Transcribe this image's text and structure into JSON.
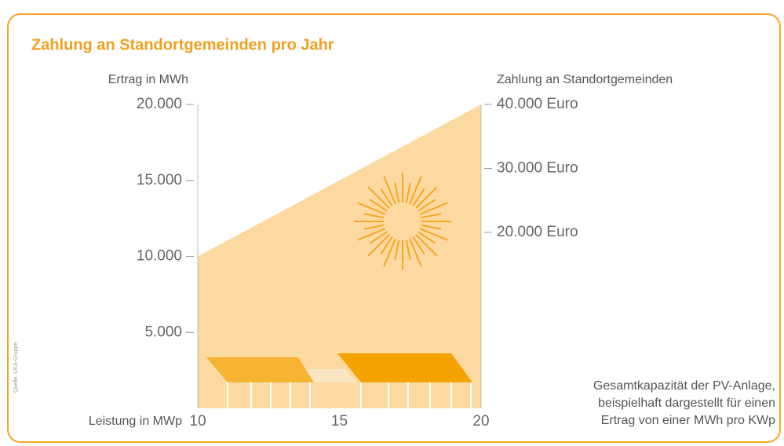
{
  "chart_data": {
    "type": "area",
    "title": "Zahlung an Standortgemeinden pro Jahr",
    "y_label": "Ertrag in MWh",
    "y2_label": "Zahlung an Standortgemeinden",
    "x_label": "Leistung in MWp",
    "note": [
      "Gesamtkapazität der PV-Anlage,",
      "beispielhaft dargestellt für einen",
      "Ertrag von einer MWh pro KWp"
    ],
    "source": "Quelle: UKA-Gruppe",
    "x": [
      10,
      20
    ],
    "values": [
      10000,
      20000
    ],
    "color": "#fdd9a2",
    "xlim": [
      10,
      20
    ],
    "xticks": [
      10,
      15,
      20
    ],
    "ylim": [
      0,
      20000
    ],
    "yticks": [
      {
        "value": 5000,
        "label": "5.000"
      },
      {
        "value": 10000,
        "label": "10.000"
      },
      {
        "value": 15000,
        "label": "15.000"
      },
      {
        "value": 20000,
        "label": "20.000"
      }
    ],
    "y2lim": [
      -7500,
      40000
    ],
    "y2ticks": [
      {
        "value": 20000,
        "label": "20.000 Euro"
      },
      {
        "value": 30000,
        "label": "30.000 Euro"
      },
      {
        "value": 40000,
        "label": "40.000 Euro"
      }
    ]
  }
}
